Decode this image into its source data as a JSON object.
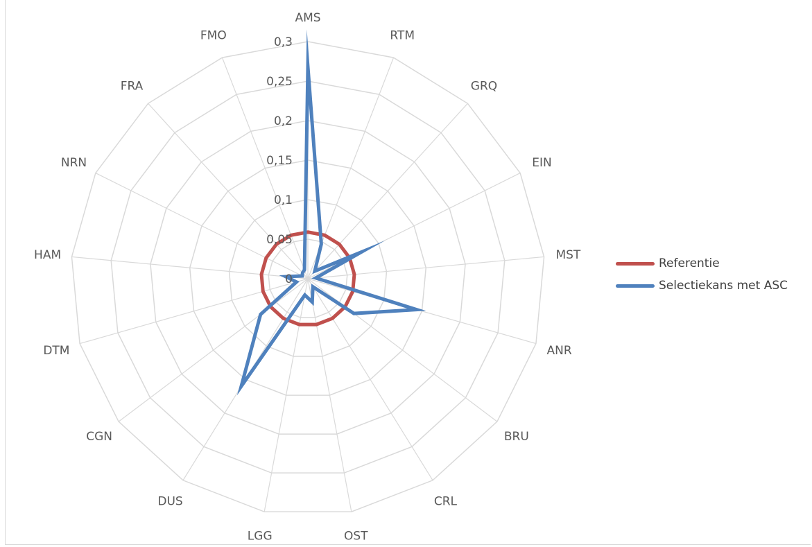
{
  "chart_data": {
    "type": "radar",
    "categories": [
      "AMS",
      "RTM",
      "GRQ",
      "EIN",
      "MST",
      "ANR",
      "BRU",
      "CRL",
      "OST",
      "LGG",
      "DUS",
      "CGN",
      "DTM",
      "HAM",
      "NRN",
      "FRA",
      "FMO"
    ],
    "radial_ticks": [
      "0",
      "0,05",
      "0,1",
      "0,15",
      "0,2",
      "0,25",
      "0,3"
    ],
    "rlim": [
      0,
      0.3
    ],
    "grid": true,
    "legend_position": "right",
    "series": [
      {
        "name": "Referentie",
        "color": "#c0504d",
        "values": [
          0.059,
          0.059,
          0.059,
          0.059,
          0.059,
          0.059,
          0.059,
          0.059,
          0.059,
          0.059,
          0.059,
          0.059,
          0.059,
          0.059,
          0.059,
          0.059,
          0.059
        ]
      },
      {
        "name": "Selectiekans met ASC",
        "color": "#4f81bd",
        "values": [
          0.268,
          0.047,
          0.013,
          0.075,
          0.01,
          0.143,
          0.073,
          0.012,
          0.03,
          0.021,
          0.16,
          0.075,
          0.015,
          0.028,
          0.008,
          0.01,
          0.012
        ]
      }
    ]
  }
}
